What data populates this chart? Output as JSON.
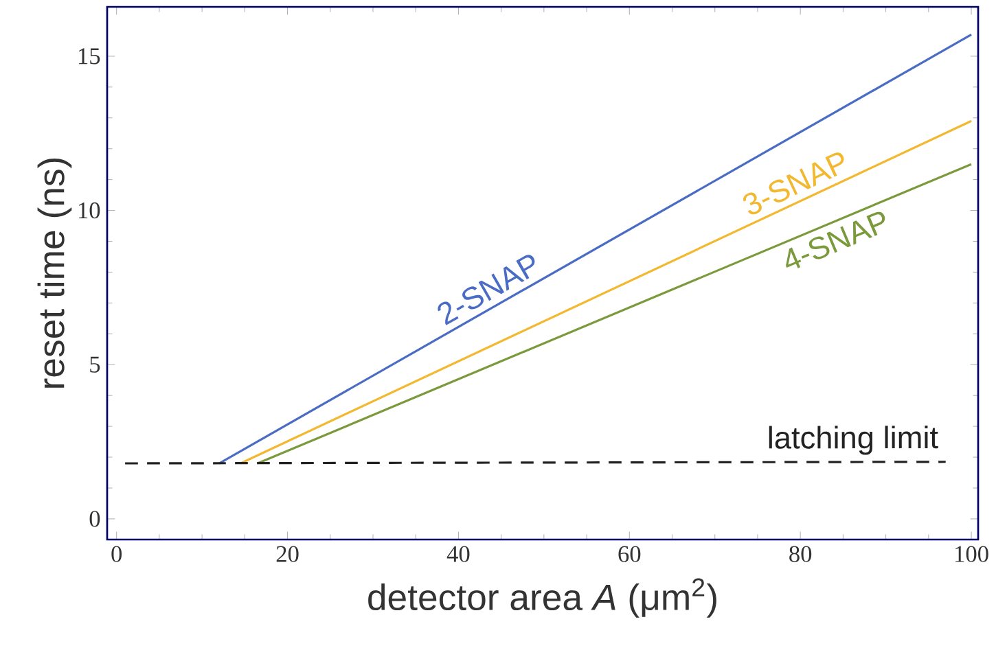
{
  "chart_data": {
    "type": "line",
    "xlabel": "detector area *A* (μm$^{2}$)",
    "ylabel": "reset time (ns)",
    "xlim": [
      -1.1,
      100.8
    ],
    "ylim": [
      -0.67,
      16.6
    ],
    "xticks": [
      0,
      20,
      40,
      60,
      80,
      100
    ],
    "yticks": [
      0,
      5,
      10,
      15
    ],
    "line_style": "solid",
    "series": [
      {
        "name": "2-SNAP",
        "color": "#4a6cc4",
        "x": [
          12,
          100
        ],
        "values": [
          1.8,
          15.7
        ]
      },
      {
        "name": "3-SNAP",
        "color": "#f2b830",
        "x": [
          14.5,
          100
        ],
        "values": [
          1.8,
          12.9
        ]
      },
      {
        "name": "4-SNAP",
        "color": "#7a9a3c",
        "x": [
          16.5,
          100
        ],
        "values": [
          1.8,
          11.5
        ]
      },
      {
        "name": "latching limit",
        "color": "#222222",
        "x": [
          1,
          97
        ],
        "values": [
          1.8,
          1.85
        ],
        "line_style": "dashed"
      }
    ]
  }
}
